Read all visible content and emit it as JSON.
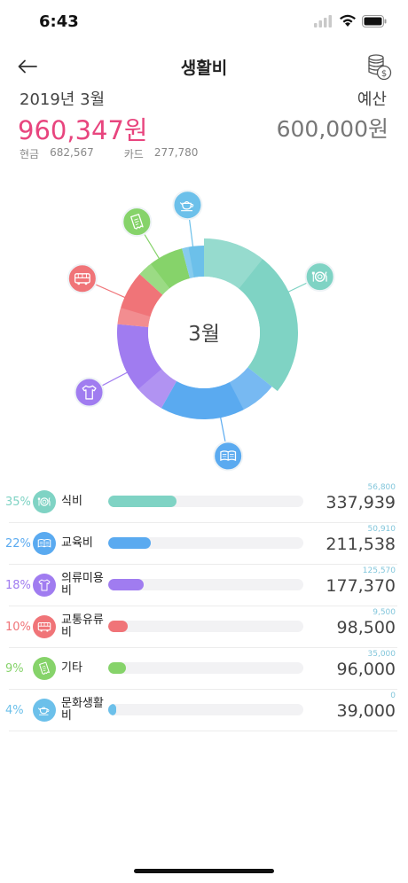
{
  "status": {
    "time": "6:43"
  },
  "nav": {
    "title": "생활비",
    "back_icon": "arrow-left-icon",
    "action_icon": "coins-dollar-icon"
  },
  "summary": {
    "month": "2019년 3월",
    "budget_label": "예산",
    "total": "960,347원",
    "budget": "600,000원",
    "cash_label": "현금",
    "cash_value": "682,567",
    "card_label": "카드",
    "card_value": "277,780"
  },
  "chart_data": {
    "type": "pie",
    "center_label": "3월",
    "slices": [
      {
        "name": "식비",
        "value": 35,
        "color": "#7fd3c4"
      },
      {
        "name": "교육비",
        "value": 22,
        "color": "#5aaaf0"
      },
      {
        "name": "의류미용비",
        "value": 18,
        "color": "#a07cf0"
      },
      {
        "name": "교통유류비",
        "value": 10,
        "color": "#f07478"
      },
      {
        "name": "기타",
        "value": 9,
        "color": "#86d36a"
      },
      {
        "name": "문화생활비",
        "value": 4,
        "color": "#6cc0ea"
      }
    ]
  },
  "categories": [
    {
      "pct": "35%",
      "name": "식비",
      "budget": "56,800",
      "amount": "337,939",
      "fill": 0.35,
      "color": "#7fd3c4",
      "icon": "plate-utensils-icon"
    },
    {
      "pct": "22%",
      "name": "교육비",
      "budget": "50,910",
      "amount": "211,538",
      "fill": 0.22,
      "color": "#5aaaf0",
      "icon": "book-icon"
    },
    {
      "pct": "18%",
      "name": "의류미용비",
      "budget": "125,570",
      "amount": "177,370",
      "fill": 0.18,
      "color": "#a07cf0",
      "icon": "shirt-icon"
    },
    {
      "pct": "10%",
      "name": "교통유류비",
      "budget": "9,500",
      "amount": "98,500",
      "fill": 0.1,
      "color": "#f07478",
      "icon": "bus-icon"
    },
    {
      "pct": "9%",
      "name": "기타",
      "budget": "35,000",
      "amount": "96,000",
      "fill": 0.09,
      "color": "#86d36a",
      "icon": "receipt-icon"
    },
    {
      "pct": "4%",
      "name": "문화생활비",
      "budget": "0",
      "amount": "39,000",
      "fill": 0.04,
      "color": "#6cc0ea",
      "icon": "teapot-icon"
    }
  ]
}
